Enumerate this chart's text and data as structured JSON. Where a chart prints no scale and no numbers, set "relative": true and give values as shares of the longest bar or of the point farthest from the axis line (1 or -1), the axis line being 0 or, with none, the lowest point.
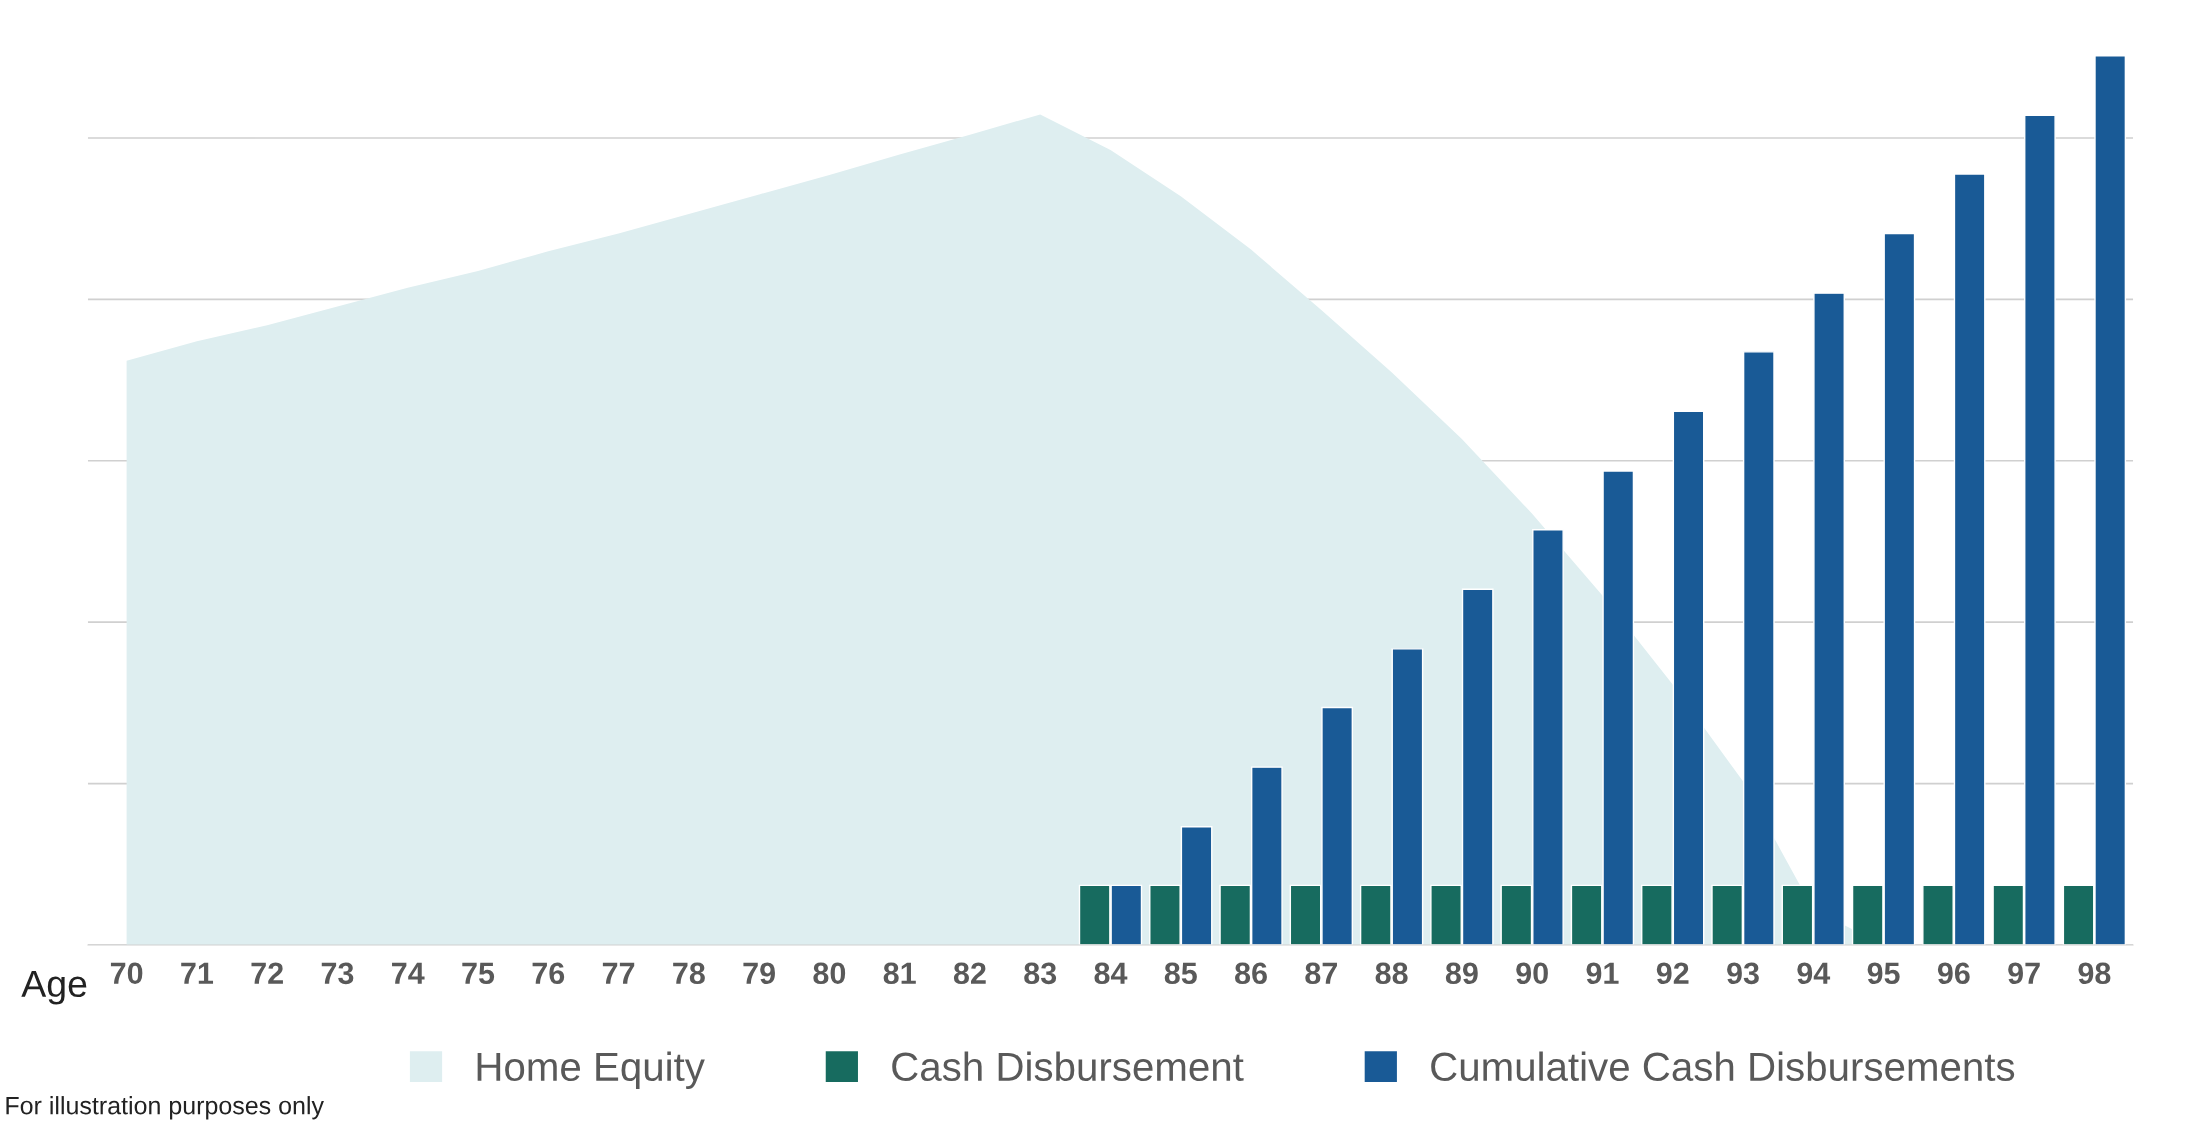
{
  "chart_data": {
    "type": "bar",
    "relative": true,
    "xlabel": "Age",
    "categories": [
      "70",
      "71",
      "72",
      "73",
      "74",
      "75",
      "76",
      "77",
      "78",
      "79",
      "80",
      "81",
      "82",
      "83",
      "84",
      "85",
      "86",
      "87",
      "88",
      "89",
      "90",
      "91",
      "92",
      "93",
      "94",
      "95",
      "96",
      "97",
      "98"
    ],
    "series": [
      {
        "name": "Home Equity",
        "type": "area",
        "color": "#deeef0",
        "values": [
          0.657,
          0.679,
          0.697,
          0.718,
          0.739,
          0.758,
          0.78,
          0.8,
          0.822,
          0.844,
          0.866,
          0.889,
          0.911,
          0.934,
          0.894,
          0.842,
          0.782,
          0.714,
          0.644,
          0.569,
          0.485,
          0.393,
          0.293,
          0.184,
          0.04,
          0,
          0,
          0,
          0
        ]
      },
      {
        "name": "Cash Disbursement",
        "color": "#176b5f",
        "values": [
          null,
          null,
          null,
          null,
          null,
          null,
          null,
          null,
          null,
          null,
          null,
          null,
          null,
          null,
          0.067,
          0.067,
          0.067,
          0.067,
          0.067,
          0.067,
          0.067,
          0.067,
          0.067,
          0.067,
          0.067,
          0.067,
          0.067,
          0.067,
          0.067
        ]
      },
      {
        "name": "Cumulative Cash Disbursements",
        "color": "#195a96",
        "values": [
          null,
          null,
          null,
          null,
          null,
          null,
          null,
          null,
          null,
          null,
          null,
          null,
          null,
          null,
          0.067,
          0.133,
          0.2,
          0.267,
          0.333,
          0.4,
          0.467,
          0.533,
          0.6,
          0.667,
          0.733,
          0.8,
          0.867,
          0.933,
          1.0
        ]
      }
    ],
    "grid": "y",
    "legend": "bottom",
    "annotations": [
      "For illustration purposes only"
    ]
  }
}
